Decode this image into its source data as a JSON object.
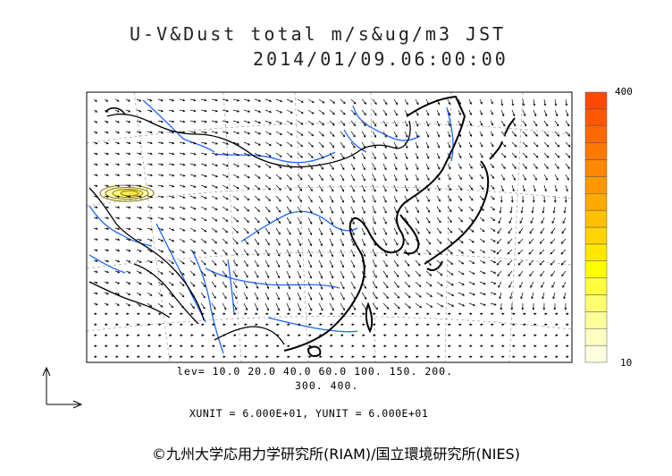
{
  "title": {
    "line1": "U-V&Dust total m/s&ug/m3 JST",
    "line2": "2014/01/09.06:00:00"
  },
  "colorbar": {
    "max_label": "400",
    "min_label": "10",
    "colors": [
      "#ffffe0",
      "#ffffc0",
      "#ffff9a",
      "#ffff70",
      "#ffff40",
      "#ffff00",
      "#ffe800",
      "#ffd400",
      "#ffc000",
      "#ffaa00",
      "#ff9800",
      "#ff8800",
      "#ff7800",
      "#ff6800",
      "#ff5800",
      "#ff4800"
    ]
  },
  "levels": {
    "line1": "lev= 10.0 20.0 40.0 60.0 100. 150. 200.",
    "line2": "300. 400."
  },
  "units": "XUNIT = 6.000E+01, YUNIT = 6.000E+01",
  "copyright": "©九州大学応用力学研究所(RIAM)/国立環境研究所(NIES)",
  "map_colors": {
    "coast": "#000000",
    "rivers": "#1e64ff",
    "grid": "#9a9a9a",
    "arrows": "#000000",
    "dust_contour": "#8a7a00"
  }
}
